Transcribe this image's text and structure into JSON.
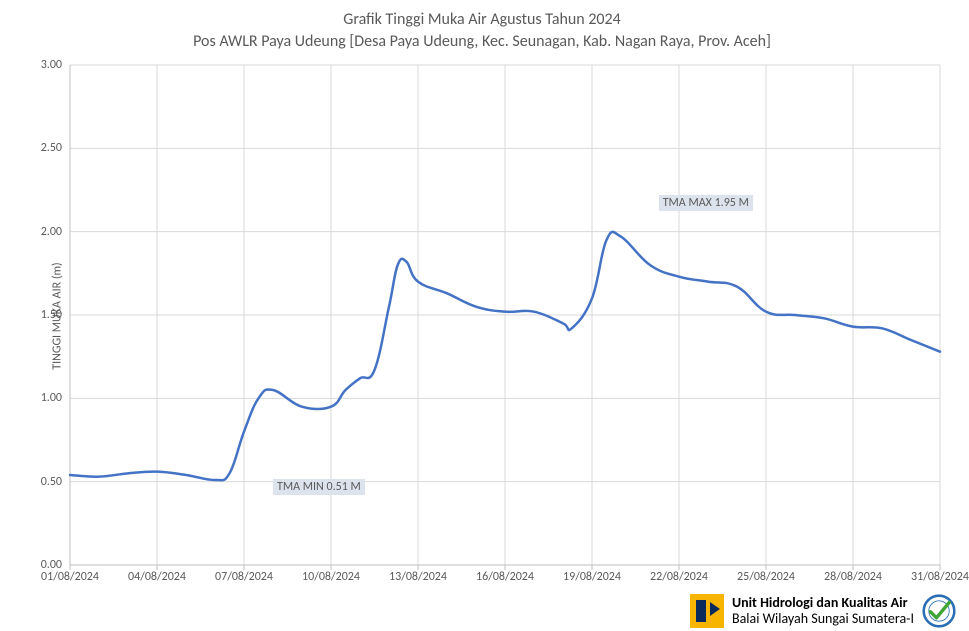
{
  "chart": {
    "type": "line",
    "title": "Grafik Tinggi Muka Air Agustus Tahun 2024",
    "subtitle": "Pos AWLR Paya Udeung [Desa Paya Udeung, Kec. Seunagan, Kab. Nagan Raya, Prov. Aceh]",
    "ylabel": "TINGGI MUKA AIR (m)",
    "background_color": "#ffffff",
    "grid_color": "#d9d9d9",
    "axis_color": "#bfbfbf",
    "line_color": "#4472c4",
    "line_width": 2.5,
    "text_color": "#595959",
    "title_fontsize": 16,
    "label_fontsize": 12,
    "tick_fontsize": 12,
    "ylim": [
      0.0,
      3.0
    ],
    "ytick_step": 0.5,
    "yticks": [
      "0.00",
      "0.50",
      "1.00",
      "1.50",
      "2.00",
      "2.50",
      "3.00"
    ],
    "x_start_day": 1,
    "x_end_day": 31,
    "xtick_step_days": 3,
    "xtick_labels": [
      "01/08/2024",
      "04/08/2024",
      "07/08/2024",
      "10/08/2024",
      "13/08/2024",
      "16/08/2024",
      "19/08/2024",
      "22/08/2024",
      "25/08/2024",
      "28/08/2024",
      "31/08/2024"
    ],
    "series": {
      "name": "TMA",
      "x_days": [
        1,
        2,
        3,
        4,
        5,
        6,
        6.5,
        7,
        7.5,
        8,
        9,
        10,
        10.5,
        11,
        11.5,
        12,
        12.3,
        12.6,
        13,
        14,
        15,
        16,
        17,
        18,
        18.3,
        19,
        19.5,
        20,
        21,
        22,
        23,
        24,
        25,
        26,
        27,
        28,
        29,
        30,
        31
      ],
      "y": [
        0.54,
        0.53,
        0.55,
        0.56,
        0.54,
        0.51,
        0.55,
        0.8,
        1.0,
        1.05,
        0.95,
        0.95,
        1.05,
        1.12,
        1.17,
        1.55,
        1.8,
        1.82,
        1.7,
        1.63,
        1.55,
        1.52,
        1.52,
        1.45,
        1.42,
        1.6,
        1.95,
        1.97,
        1.8,
        1.73,
        1.7,
        1.67,
        1.52,
        1.5,
        1.48,
        1.43,
        1.42,
        1.35,
        1.28
      ]
    },
    "annotations": [
      {
        "text": "TMA MIN  0.51  M",
        "x_day": 8.0,
        "y": 0.47,
        "box_bg": "#dce3ed"
      },
      {
        "text": "TMA MAX  1.95  M",
        "x_day": 21.3,
        "y": 2.17,
        "box_bg": "#dce3ed"
      }
    ]
  },
  "footer": {
    "org_line1": "Unit Hidrologi dan Kualitas Air",
    "org_line2": "Balai Wilayah Sungai Sumatera-I",
    "logo_name": "pu-logo",
    "iso_badge_name": "iso-certified-badge"
  }
}
